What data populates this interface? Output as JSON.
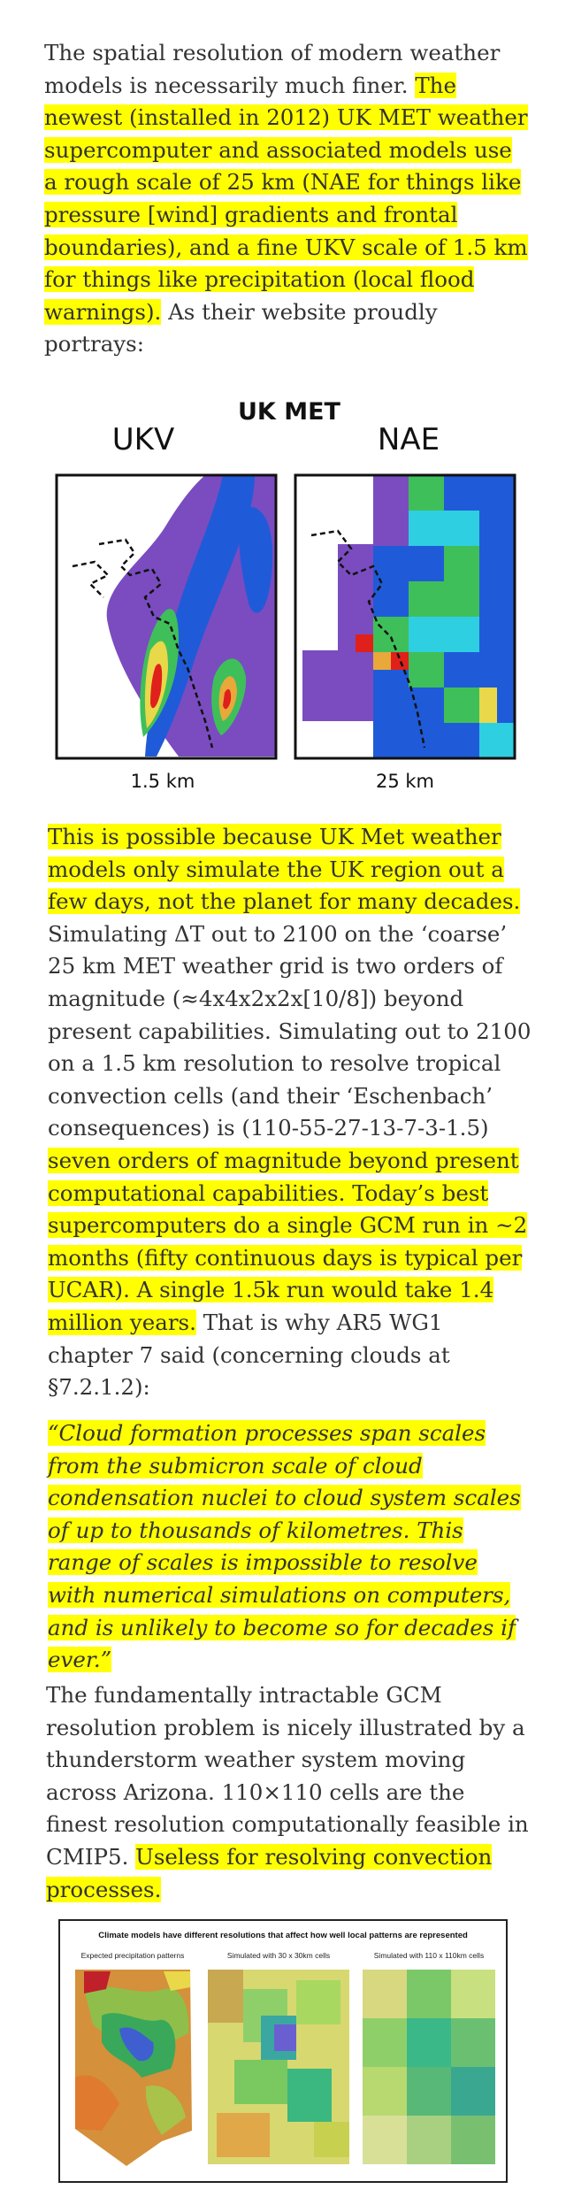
{
  "paragraph1": {
    "intro": "The spatial resolution of modern weather models is necessarily much finer. ",
    "highlight": "The newest (installed in 2012) UK MET weather supercomputer and associated models use a rough scale of 25 km (NAE for things like pressure [wind] gradients and frontal boundaries), and a fine UKV scale of 1.5 km for things like precipitation (local flood warnings).",
    "outro": " As their website proudly portrays:"
  },
  "figure1": {
    "title": "UK MET",
    "left_label": "UKV",
    "right_label": "NAE",
    "left_caption": "1.5 km",
    "right_caption": "25 km"
  },
  "paragraph2": {
    "highlight1": "This is possible because UK Met weather models only simulate the UK region out a few days, not the planet for many decades.",
    "middle": " Simulating ΔT out to 2100 on the ‘coarse’ 25 km MET weather grid is two orders of magnitude (≈4x4x2x2x[10/8]) beyond present capabilities. Simulating out to 2100 on a 1.5 km resolution to resolve tropical convection cells (and their ‘Eschenbach’ consequences) is (110-55-27-13-7-3-1.5) ",
    "highlight2": "seven orders of magnitude beyond present computational capabilities. Today’s best supercomputers do a single GCM run in ~2 months (fifty continuous days is typical per UCAR). A single 1.5k run would take 1.4 million years.",
    "outro": " That is why AR5 WG1 chapter 7 said (concerning clouds at §7.2.1.2):"
  },
  "quote": {
    "text": "“Cloud formation processes span scales from the submicron scale of cloud condensation nuclei to cloud system scales of up to thousands of kilometres. This range of scales is impossible to resolve with numerical simulations on computers, and is unlikely to become so for decades if ever.”"
  },
  "paragraph3": {
    "text": "The fundamentally intractable GCM resolution problem is nicely illustrated by a thunderstorm weather system moving across Arizona. 110×110 cells are the finest resolution computationally feasible in CMIP5. ",
    "highlight": "Useless for resolving convection processes."
  },
  "figure2": {
    "title": "Climate models have different resolutions that affect how well local patterns are represented",
    "panels": [
      "Expected precipitation patterns",
      "Simulated with 30 x 30km cells",
      "Simulated with 110 x 110km cells"
    ]
  },
  "colors": {
    "highlight": "#ffff00",
    "text": "#333333",
    "map_purple": "#7a4cc0",
    "map_blue": "#1f5bd8",
    "map_green": "#3fbf5a",
    "map_red": "#e0201a"
  }
}
